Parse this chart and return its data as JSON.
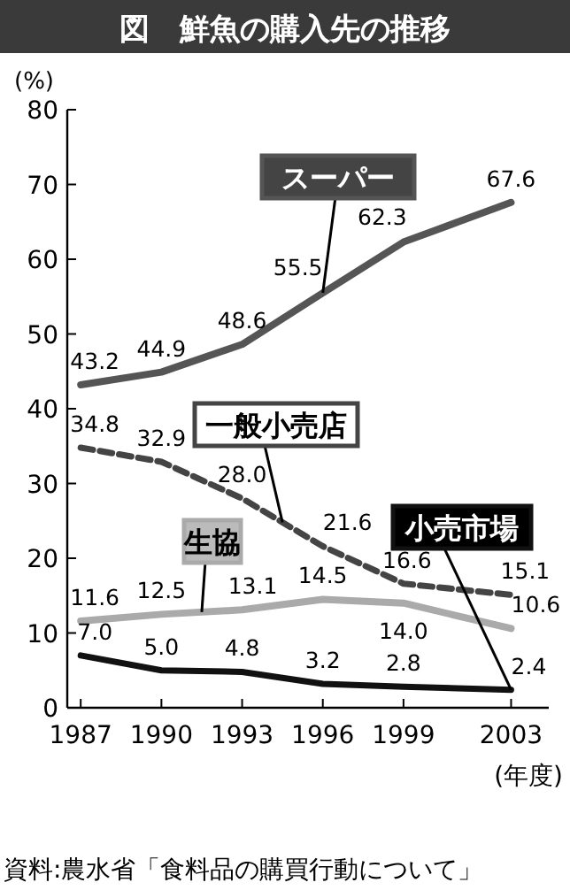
{
  "chart_data": {
    "type": "line",
    "title": "図　鮮魚の購入先の推移",
    "ylabel": "(%)",
    "xlabel": "(年度)",
    "x": [
      1987,
      1990,
      1993,
      1996,
      1999,
      2003
    ],
    "xlim": [
      1986.5,
      2004.4
    ],
    "xticks": [
      1987,
      1990,
      1993,
      1996,
      1999,
      2003
    ],
    "ylim": [
      0,
      80
    ],
    "yticks": [
      0,
      10,
      20,
      30,
      40,
      50,
      60,
      70,
      80
    ],
    "marker": "none",
    "series": [
      {
        "name": "スーパー",
        "color": "#555555",
        "values": [
          43.2,
          44.9,
          48.6,
          55.5,
          62.3,
          67.6
        ],
        "value_labels": [
          "43.2",
          "44.9",
          "48.6",
          "55.5",
          "62.3",
          "67.6"
        ],
        "line_style": "solid"
      },
      {
        "name": "一般小売店",
        "color": "#444444",
        "values": [
          34.8,
          32.9,
          28.0,
          21.6,
          16.6,
          15.1
        ],
        "value_labels": [
          "34.8",
          "32.9",
          "28.0",
          "21.6",
          "16.6",
          "15.1"
        ],
        "line_style": "dashed"
      },
      {
        "name": "生協",
        "color": "#aaaaaa",
        "values": [
          11.6,
          12.5,
          13.1,
          14.5,
          14.0,
          10.6
        ],
        "value_labels": [
          "11.6",
          "12.5",
          "13.1",
          "14.5",
          "14.0",
          "10.6"
        ],
        "line_style": "solid"
      },
      {
        "name": "小売市場",
        "color": "#111111",
        "values": [
          7.0,
          5.0,
          4.8,
          3.2,
          2.8,
          2.4
        ],
        "value_labels": [
          "7.0",
          "5.0",
          "4.8",
          "3.2",
          "2.8",
          "2.4"
        ],
        "line_style": "solid"
      }
    ],
    "annotations": [
      "資料:農水省「食料品の購買行動について」"
    ]
  }
}
